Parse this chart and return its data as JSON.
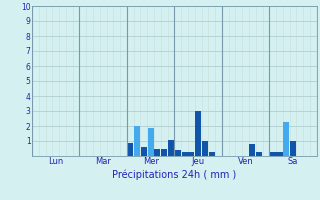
{
  "title": "Précipitations 24h ( mm )",
  "background_color": "#d4f0f0",
  "bar_color_dark": "#1155aa",
  "bar_color_light": "#44aaee",
  "grid_color_minor": "#c8dede",
  "grid_color_major": "#aac8c8",
  "day_line_color": "#7799aa",
  "ylim": [
    0,
    10
  ],
  "yticks": [
    1,
    2,
    3,
    4,
    5,
    6,
    7,
    8,
    9,
    10
  ],
  "days": [
    "Lun",
    "Mar",
    "Mer",
    "Jeu",
    "Ven",
    "Sa"
  ],
  "n_bars": 42,
  "bar_data": [
    0.0,
    0.0,
    0.0,
    0.0,
    0.0,
    0.0,
    0.0,
    0.0,
    0.0,
    0.0,
    0.0,
    0.0,
    0.0,
    0.0,
    0.85,
    2.0,
    0.6,
    1.9,
    0.5,
    0.5,
    1.1,
    0.4,
    0.25,
    0.3,
    3.0,
    1.0,
    0.3,
    0.0,
    0.0,
    0.0,
    0.0,
    0.0,
    0.8,
    0.3,
    0.0,
    0.3,
    0.3,
    2.3,
    1.0,
    0.0,
    0.0,
    0.0
  ],
  "bar_colors_override": {
    "15": "#44aaee",
    "17": "#44aaee",
    "24": "#1155aa",
    "37": "#44aaee"
  },
  "day_sep_fracs": [
    0.0,
    0.16667,
    0.33333,
    0.5,
    0.66667,
    0.83333,
    1.0
  ],
  "day_label_fracs": [
    0.08333,
    0.25,
    0.41667,
    0.58333,
    0.75,
    0.91667
  ]
}
